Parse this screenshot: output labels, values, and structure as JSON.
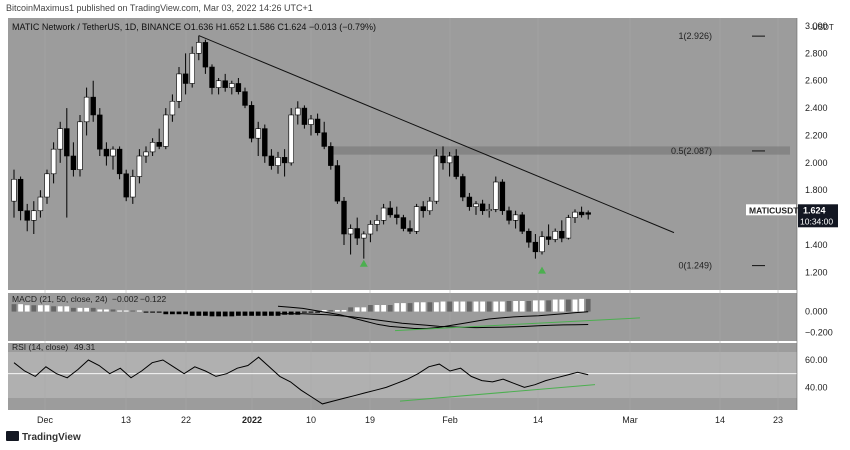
{
  "header": {
    "publisher": "BitcoinMaximus1 published on TradingView.com, Mar 03, 2022 14:26 UTC+1"
  },
  "legend": {
    "pair": "MATIC Network / TetherUS, 1D, BINANCE",
    "open_label": "O",
    "open": "1.636",
    "high_label": "H",
    "high": "1.652",
    "low_label": "L",
    "low": "1.586",
    "close_label": "C",
    "close": "1.624",
    "change": "−0.013 (−0.79%)"
  },
  "price_axis": {
    "currency": "USDT",
    "ticks": [
      "3.000",
      "2.800",
      "2.600",
      "2.400",
      "2.200",
      "2.000",
      "1.800",
      "1.600",
      "1.400",
      "1.200"
    ]
  },
  "price_tag": {
    "symbol": "MATICUSDT",
    "value": "1.624",
    "countdown": "10:34:00"
  },
  "fib_levels": [
    {
      "label": "1(2.926)",
      "value": 2.926
    },
    {
      "label": "0.5(2.087)",
      "value": 2.087
    },
    {
      "label": "0(1.249)",
      "value": 1.249
    }
  ],
  "macd": {
    "label": "MACD (21, 50, close, 24)",
    "macd": "−0.002",
    "signal": "−0.122",
    "ticks": [
      "0.000",
      "−0.200"
    ],
    "line": [
      0.05,
      0.04,
      0.03,
      0.01,
      -0.01,
      -0.03,
      -0.06,
      -0.09,
      -0.12,
      -0.14,
      -0.15,
      -0.16,
      -0.16,
      -0.15,
      -0.13,
      -0.11,
      -0.09,
      -0.07,
      -0.06,
      -0.05,
      -0.045,
      -0.04,
      -0.03,
      -0.02,
      -0.01,
      -0.002
    ],
    "signal_line": [
      -0.02,
      -0.02,
      -0.02,
      -0.025,
      -0.03,
      -0.04,
      -0.05,
      -0.065,
      -0.08,
      -0.095,
      -0.11,
      -0.12,
      -0.13,
      -0.14,
      -0.145,
      -0.15,
      -0.152,
      -0.15,
      -0.148,
      -0.145,
      -0.14,
      -0.135,
      -0.13,
      -0.126,
      -0.124,
      -0.122
    ]
  },
  "rsi": {
    "label": "RSI (14, close)",
    "value": "49.31",
    "ticks": [
      "60.00",
      "40.00"
    ],
    "values": [
      58,
      52,
      48,
      55,
      50,
      47,
      53,
      60,
      56,
      50,
      54,
      47,
      52,
      58,
      60,
      55,
      50,
      55,
      52,
      48,
      50,
      54,
      56,
      62,
      55,
      48,
      44,
      38,
      33,
      28,
      30,
      32,
      34,
      36,
      38,
      40,
      43,
      46,
      50,
      55,
      57,
      52,
      54,
      48,
      45,
      44,
      46,
      43,
      40,
      42,
      45,
      47,
      49,
      51,
      49.3
    ]
  },
  "time_axis": {
    "labels": [
      "Dec",
      "13",
      "22",
      "2022",
      "10",
      "19",
      "Feb",
      "14",
      "Mar",
      "14",
      "23"
    ]
  },
  "footer": {
    "brand": "TradingView"
  },
  "colors": {
    "up": "#ffffff",
    "down": "#000000",
    "background": "#9c9c9c",
    "zone": "#7e7e7e",
    "signal_green": "#4caf50"
  },
  "chart_data": {
    "type": "candlestick",
    "symbol": "MATICUSDT",
    "interval": "1D",
    "ylim": [
      1.1,
      3.0
    ],
    "x_tick_labels": [
      "Dec",
      "13",
      "22",
      "2022",
      "10",
      "19",
      "Feb",
      "14",
      "Mar",
      "14",
      "23"
    ],
    "candles": [
      {
        "o": 1.72,
        "h": 1.95,
        "l": 1.6,
        "c": 1.88
      },
      {
        "o": 1.88,
        "h": 1.9,
        "l": 1.58,
        "c": 1.65
      },
      {
        "o": 1.65,
        "h": 1.7,
        "l": 1.5,
        "c": 1.58
      },
      {
        "o": 1.58,
        "h": 1.72,
        "l": 1.48,
        "c": 1.65
      },
      {
        "o": 1.65,
        "h": 1.8,
        "l": 1.6,
        "c": 1.75
      },
      {
        "o": 1.75,
        "h": 1.95,
        "l": 1.7,
        "c": 1.92
      },
      {
        "o": 1.92,
        "h": 2.15,
        "l": 1.85,
        "c": 2.1
      },
      {
        "o": 2.1,
        "h": 2.3,
        "l": 2.0,
        "c": 2.25
      },
      {
        "o": 2.25,
        "h": 2.4,
        "l": 1.6,
        "c": 2.05
      },
      {
        "o": 2.05,
        "h": 2.15,
        "l": 1.9,
        "c": 1.95
      },
      {
        "o": 1.95,
        "h": 2.35,
        "l": 1.9,
        "c": 2.3
      },
      {
        "o": 2.3,
        "h": 2.55,
        "l": 2.2,
        "c": 2.48
      },
      {
        "o": 2.48,
        "h": 2.6,
        "l": 2.3,
        "c": 2.35
      },
      {
        "o": 2.35,
        "h": 2.4,
        "l": 2.05,
        "c": 2.1
      },
      {
        "o": 2.1,
        "h": 2.15,
        "l": 1.98,
        "c": 2.05
      },
      {
        "o": 2.05,
        "h": 2.12,
        "l": 1.95,
        "c": 2.1
      },
      {
        "o": 2.1,
        "h": 2.12,
        "l": 1.88,
        "c": 1.92
      },
      {
        "o": 1.92,
        "h": 1.95,
        "l": 1.72,
        "c": 1.75
      },
      {
        "o": 1.75,
        "h": 1.95,
        "l": 1.7,
        "c": 1.9
      },
      {
        "o": 1.9,
        "h": 2.1,
        "l": 1.85,
        "c": 2.05
      },
      {
        "o": 2.05,
        "h": 2.12,
        "l": 2.0,
        "c": 2.08
      },
      {
        "o": 2.08,
        "h": 2.18,
        "l": 2.05,
        "c": 2.15
      },
      {
        "o": 2.15,
        "h": 2.25,
        "l": 2.1,
        "c": 2.12
      },
      {
        "o": 2.12,
        "h": 2.4,
        "l": 2.1,
        "c": 2.35
      },
      {
        "o": 2.35,
        "h": 2.5,
        "l": 2.3,
        "c": 2.45
      },
      {
        "o": 2.45,
        "h": 2.7,
        "l": 2.4,
        "c": 2.65
      },
      {
        "o": 2.65,
        "h": 2.8,
        "l": 2.5,
        "c": 2.58
      },
      {
        "o": 2.58,
        "h": 2.85,
        "l": 2.55,
        "c": 2.8
      },
      {
        "o": 2.8,
        "h": 2.93,
        "l": 2.75,
        "c": 2.88
      },
      {
        "o": 2.88,
        "h": 2.9,
        "l": 2.65,
        "c": 2.7
      },
      {
        "o": 2.7,
        "h": 2.72,
        "l": 2.5,
        "c": 2.55
      },
      {
        "o": 2.55,
        "h": 2.62,
        "l": 2.5,
        "c": 2.6
      },
      {
        "o": 2.6,
        "h": 2.65,
        "l": 2.52,
        "c": 2.55
      },
      {
        "o": 2.55,
        "h": 2.6,
        "l": 2.5,
        "c": 2.58
      },
      {
        "o": 2.58,
        "h": 2.62,
        "l": 2.5,
        "c": 2.52
      },
      {
        "o": 2.52,
        "h": 2.55,
        "l": 2.4,
        "c": 2.42
      },
      {
        "o": 2.42,
        "h": 2.45,
        "l": 2.15,
        "c": 2.18
      },
      {
        "o": 2.18,
        "h": 2.3,
        "l": 2.05,
        "c": 2.25
      },
      {
        "o": 2.25,
        "h": 2.28,
        "l": 2.0,
        "c": 2.05
      },
      {
        "o": 2.05,
        "h": 2.1,
        "l": 1.95,
        "c": 1.98
      },
      {
        "o": 1.98,
        "h": 2.08,
        "l": 1.92,
        "c": 2.04
      },
      {
        "o": 2.04,
        "h": 2.1,
        "l": 1.9,
        "c": 2.0
      },
      {
        "o": 2.0,
        "h": 2.4,
        "l": 1.98,
        "c": 2.35
      },
      {
        "o": 2.35,
        "h": 2.45,
        "l": 2.28,
        "c": 2.4
      },
      {
        "o": 2.4,
        "h": 2.42,
        "l": 2.25,
        "c": 2.28
      },
      {
        "o": 2.28,
        "h": 2.35,
        "l": 2.2,
        "c": 2.32
      },
      {
        "o": 2.32,
        "h": 2.36,
        "l": 2.2,
        "c": 2.22
      },
      {
        "o": 2.22,
        "h": 2.3,
        "l": 2.1,
        "c": 2.12
      },
      {
        "o": 2.12,
        "h": 2.15,
        "l": 1.95,
        "c": 1.98
      },
      {
        "o": 1.98,
        "h": 2.02,
        "l": 1.7,
        "c": 1.72
      },
      {
        "o": 1.72,
        "h": 1.75,
        "l": 1.4,
        "c": 1.48
      },
      {
        "o": 1.48,
        "h": 1.55,
        "l": 1.33,
        "c": 1.52
      },
      {
        "o": 1.52,
        "h": 1.6,
        "l": 1.4,
        "c": 1.45
      },
      {
        "o": 1.45,
        "h": 1.5,
        "l": 1.3,
        "c": 1.48
      },
      {
        "o": 1.48,
        "h": 1.58,
        "l": 1.42,
        "c": 1.55
      },
      {
        "o": 1.55,
        "h": 1.62,
        "l": 1.5,
        "c": 1.58
      },
      {
        "o": 1.58,
        "h": 1.7,
        "l": 1.55,
        "c": 1.67
      },
      {
        "o": 1.67,
        "h": 1.72,
        "l": 1.6,
        "c": 1.62
      },
      {
        "o": 1.62,
        "h": 1.68,
        "l": 1.55,
        "c": 1.6
      },
      {
        "o": 1.6,
        "h": 1.62,
        "l": 1.5,
        "c": 1.52
      },
      {
        "o": 1.52,
        "h": 1.58,
        "l": 1.48,
        "c": 1.5
      },
      {
        "o": 1.5,
        "h": 1.7,
        "l": 1.48,
        "c": 1.68
      },
      {
        "o": 1.68,
        "h": 1.72,
        "l": 1.6,
        "c": 1.65
      },
      {
        "o": 1.65,
        "h": 1.75,
        "l": 1.62,
        "c": 1.72
      },
      {
        "o": 1.72,
        "h": 2.1,
        "l": 1.7,
        "c": 2.05
      },
      {
        "o": 2.05,
        "h": 2.12,
        "l": 1.95,
        "c": 2.0
      },
      {
        "o": 2.0,
        "h": 2.08,
        "l": 1.9,
        "c": 2.05
      },
      {
        "o": 2.05,
        "h": 2.1,
        "l": 1.88,
        "c": 1.9
      },
      {
        "o": 1.9,
        "h": 1.92,
        "l": 1.72,
        "c": 1.75
      },
      {
        "o": 1.75,
        "h": 1.78,
        "l": 1.65,
        "c": 1.68
      },
      {
        "o": 1.68,
        "h": 1.72,
        "l": 1.62,
        "c": 1.7
      },
      {
        "o": 1.7,
        "h": 1.73,
        "l": 1.62,
        "c": 1.65
      },
      {
        "o": 1.65,
        "h": 1.7,
        "l": 1.6,
        "c": 1.66
      },
      {
        "o": 1.66,
        "h": 1.9,
        "l": 1.64,
        "c": 1.86
      },
      {
        "o": 1.86,
        "h": 1.88,
        "l": 1.62,
        "c": 1.65
      },
      {
        "o": 1.65,
        "h": 1.68,
        "l": 1.55,
        "c": 1.58
      },
      {
        "o": 1.58,
        "h": 1.65,
        "l": 1.52,
        "c": 1.62
      },
      {
        "o": 1.62,
        "h": 1.64,
        "l": 1.48,
        "c": 1.5
      },
      {
        "o": 1.5,
        "h": 1.52,
        "l": 1.38,
        "c": 1.42
      },
      {
        "o": 1.42,
        "h": 1.48,
        "l": 1.3,
        "c": 1.35
      },
      {
        "o": 1.35,
        "h": 1.5,
        "l": 1.33,
        "c": 1.46
      },
      {
        "o": 1.46,
        "h": 1.55,
        "l": 1.4,
        "c": 1.44
      },
      {
        "o": 1.44,
        "h": 1.52,
        "l": 1.42,
        "c": 1.5
      },
      {
        "o": 1.5,
        "h": 1.58,
        "l": 1.42,
        "c": 1.45
      },
      {
        "o": 1.45,
        "h": 1.62,
        "l": 1.44,
        "c": 1.6
      },
      {
        "o": 1.6,
        "h": 1.66,
        "l": 1.56,
        "c": 1.64
      },
      {
        "o": 1.64,
        "h": 1.68,
        "l": 1.6,
        "c": 1.62
      },
      {
        "o": 1.636,
        "h": 1.652,
        "l": 1.586,
        "c": 1.624
      }
    ],
    "trend_line": [
      {
        "i": 28,
        "v": 2.93
      },
      {
        "i": 100,
        "v": 1.49
      }
    ],
    "rectangle": {
      "from_i": 48,
      "to_i": 125,
      "low": 2.06,
      "high": 2.12
    },
    "markers": [
      {
        "i": 53,
        "v": 1.27,
        "shape": "triangle-up"
      },
      {
        "i": 80,
        "v": 1.22,
        "shape": "triangle-up"
      }
    ]
  }
}
